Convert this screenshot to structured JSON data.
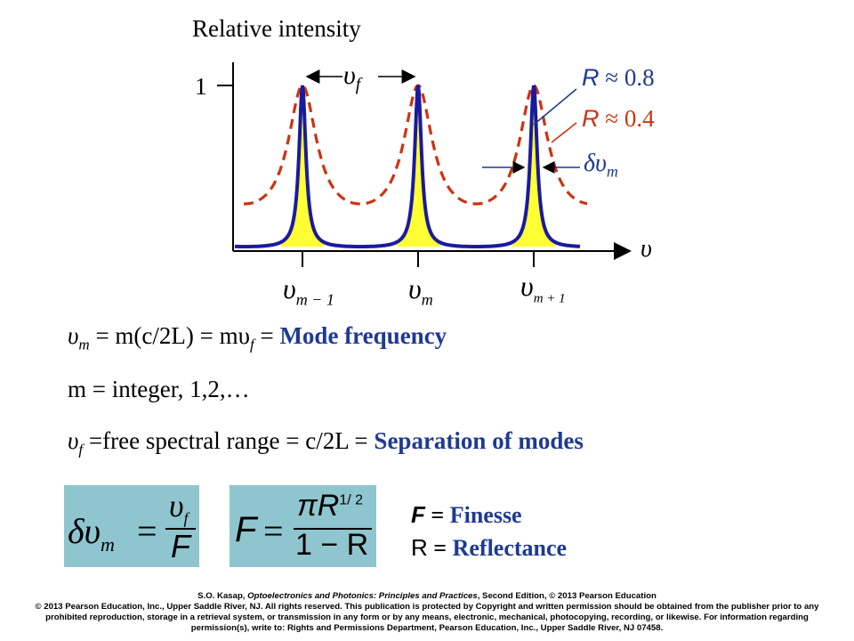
{
  "diagram": {
    "y_axis_label": "Relative intensity",
    "y_tick": "1",
    "x_axis_symbol": "υ",
    "fsr_label_main": "υ",
    "fsr_label_sub": "f",
    "r_high_letter": "R",
    "r_high_value": "≈ 0.8",
    "r_low_letter": "R",
    "r_low_value": "≈ 0.4",
    "linewidth_label_main": "δυ",
    "linewidth_label_sub": "m",
    "x_ticks": [
      {
        "main": "υ",
        "sub": "m − 1"
      },
      {
        "main": "υ",
        "sub": "m"
      },
      {
        "main": "υ",
        "sub": "m + 1"
      }
    ],
    "colors": {
      "high_curve": "#1a1aa0",
      "low_curve": "#cc3311",
      "fill": "#ffff33",
      "label_blue": "#1f3a93"
    }
  },
  "equations": {
    "line1": {
      "part_a": "υ",
      "sub_a": "m",
      "part_b": " = m(c/2L) = mυ",
      "sub_b": "f",
      "part_c": " = ",
      "highlight": "Mode frequency"
    },
    "line2": {
      "text": "m = integer, 1,2,…"
    },
    "line3": {
      "part_a": "υ",
      "sub_a": "f",
      "part_b": " =free spectral range = c/2L = ",
      "highlight": "Separation of modes"
    }
  },
  "formulas": {
    "linewidth": {
      "lhs": "δυ",
      "lhs_sub": "m",
      "equals": "=",
      "numerator": "υ",
      "numerator_sub": "f",
      "denominator": "F"
    },
    "finesse": {
      "lhs": "F",
      "equals": "=",
      "num_a": "πR",
      "num_exp": "1/ 2",
      "denominator": "1 − R"
    }
  },
  "legend": {
    "f_symbol": "F",
    "f_eq": " = ",
    "f_text": "Finesse",
    "r_symbol": "R",
    "r_eq": " = ",
    "r_text": "Reflectance"
  },
  "credit": {
    "line1_a": "S.O. Kasap, ",
    "line1_title": "Optoelectronics and Photonics: Principles and Practices",
    "line1_b": ", Second Edition, © 2013 Pearson Education",
    "line2": "© 2013 Pearson Education, Inc., Upper Saddle River, NJ. All rights reserved. This publication is protected by Copyright and written permission should be obtained from the publisher prior to any prohibited reproduction, storage in a retrieval system, or transmission in any form or by any means, electronic, mechanical, photocopying, recording, or likewise. For information regarding permission(s), write to: Rights and Permissions Department, Pearson Education, Inc., Upper Saddle River, NJ 07458."
  }
}
